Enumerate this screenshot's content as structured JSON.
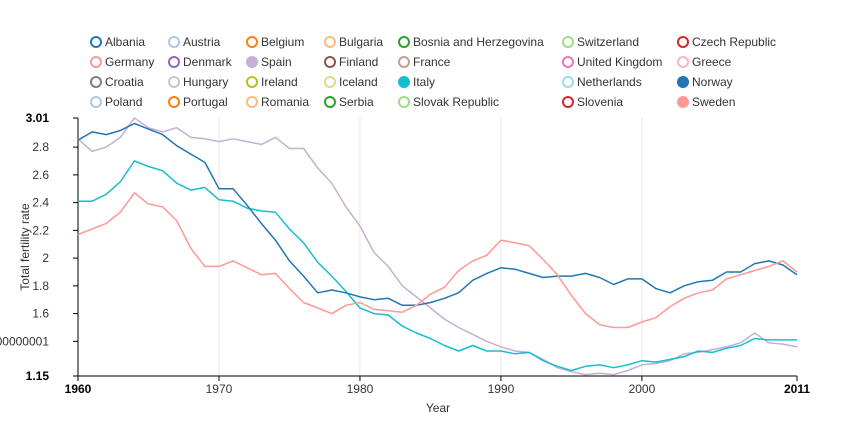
{
  "chart_data": {
    "type": "line",
    "title": "",
    "xlabel": "Year",
    "ylabel": "Total fertility rate",
    "xlim": [
      1960,
      2011
    ],
    "ylim": [
      1.15,
      3.01
    ],
    "x_ticks": [
      {
        "value": 1960,
        "label": "1960",
        "bold": true
      },
      {
        "value": 1970,
        "label": "1970",
        "bold": false
      },
      {
        "value": 1980,
        "label": "1980",
        "bold": false
      },
      {
        "value": 1990,
        "label": "1990",
        "bold": false
      },
      {
        "value": 2000,
        "label": "2000",
        "bold": false
      },
      {
        "value": 2011,
        "label": "2011",
        "bold": true
      }
    ],
    "y_ticks": [
      {
        "value": 3.01,
        "label": "3.01",
        "bold": true
      },
      {
        "value": 2.8,
        "label": "2.8",
        "bold": false
      },
      {
        "value": 2.6,
        "label": "2.6",
        "bold": false
      },
      {
        "value": 2.4,
        "label": "2.4",
        "bold": false
      },
      {
        "value": 2.2,
        "label": "2.2",
        "bold": false
      },
      {
        "value": 2.0,
        "label": "2",
        "bold": false
      },
      {
        "value": 1.8,
        "label": "1.8",
        "bold": false
      },
      {
        "value": 1.6,
        "label": "1.6",
        "bold": false
      },
      {
        "value": 1.4,
        "label": "00000001",
        "bold": false
      },
      {
        "value": 1.15,
        "label": "1.15",
        "bold": true
      }
    ],
    "x_grid_years": [
      1970,
      1980,
      1990,
      2000
    ],
    "legend": [
      {
        "name": "Albania",
        "color": "#1f77b4",
        "filled": false
      },
      {
        "name": "Austria",
        "color": "#aec7e8",
        "filled": false
      },
      {
        "name": "Belgium",
        "color": "#ff7f0e",
        "filled": false
      },
      {
        "name": "Bulgaria",
        "color": "#ffbb78",
        "filled": false
      },
      {
        "name": "Bosnia and Herzegovina",
        "color": "#2ca02c",
        "filled": false
      },
      {
        "name": "Switzerland",
        "color": "#98df8a",
        "filled": false
      },
      {
        "name": "Czech Republic",
        "color": "#d62728",
        "filled": false
      },
      {
        "name": "Germany",
        "color": "#ff9896",
        "filled": false
      },
      {
        "name": "Denmark",
        "color": "#9467bd",
        "filled": false
      },
      {
        "name": "Spain",
        "color": "#c5b0d5",
        "filled": true
      },
      {
        "name": "Finland",
        "color": "#8c564b",
        "filled": false
      },
      {
        "name": "France",
        "color": "#c49c94",
        "filled": false
      },
      {
        "name": "United Kingdom",
        "color": "#e377c2",
        "filled": false
      },
      {
        "name": "Greece",
        "color": "#f7b6d2",
        "filled": false
      },
      {
        "name": "Croatia",
        "color": "#7f7f7f",
        "filled": false
      },
      {
        "name": "Hungary",
        "color": "#c7c7c7",
        "filled": false
      },
      {
        "name": "Ireland",
        "color": "#bcbd22",
        "filled": false
      },
      {
        "name": "Iceland",
        "color": "#dbdb8d",
        "filled": false
      },
      {
        "name": "Italy",
        "color": "#17becf",
        "filled": true
      },
      {
        "name": "Netherlands",
        "color": "#9edae5",
        "filled": false
      },
      {
        "name": "Norway",
        "color": "#1f77b4",
        "filled": true
      },
      {
        "name": "Poland",
        "color": "#aec7e8",
        "filled": false
      },
      {
        "name": "Portugal",
        "color": "#ff7f0e",
        "filled": false
      },
      {
        "name": "Romania",
        "color": "#ffbb78",
        "filled": false
      },
      {
        "name": "Serbia",
        "color": "#2ca02c",
        "filled": false
      },
      {
        "name": "Slovak Republic",
        "color": "#98df8a",
        "filled": false
      },
      {
        "name": "Slovenia",
        "color": "#d62728",
        "filled": false
      },
      {
        "name": "Sweden",
        "color": "#ff9896",
        "filled": true
      }
    ],
    "series": [
      {
        "name": "Spain",
        "color": "#c5b0d5",
        "years": [
          1960,
          1961,
          1962,
          1963,
          1964,
          1965,
          1966,
          1967,
          1968,
          1969,
          1970,
          1971,
          1972,
          1973,
          1974,
          1975,
          1976,
          1977,
          1978,
          1979,
          1980,
          1981,
          1982,
          1983,
          1984,
          1985,
          1986,
          1987,
          1988,
          1989,
          1990,
          1991,
          1992,
          1993,
          1994,
          1995,
          1996,
          1997,
          1998,
          1999,
          2000,
          2001,
          2002,
          2003,
          2004,
          2005,
          2006,
          2007,
          2008,
          2009,
          2010,
          2011
        ],
        "values": [
          2.86,
          2.77,
          2.8,
          2.87,
          3.01,
          2.94,
          2.91,
          2.94,
          2.87,
          2.86,
          2.84,
          2.86,
          2.84,
          2.82,
          2.87,
          2.79,
          2.79,
          2.65,
          2.54,
          2.37,
          2.23,
          2.04,
          1.94,
          1.8,
          1.72,
          1.64,
          1.56,
          1.5,
          1.45,
          1.4,
          1.36,
          1.33,
          1.32,
          1.27,
          1.21,
          1.18,
          1.16,
          1.17,
          1.16,
          1.19,
          1.23,
          1.24,
          1.26,
          1.31,
          1.32,
          1.34,
          1.36,
          1.39,
          1.46,
          1.39,
          1.38,
          1.36
        ]
      },
      {
        "name": "Italy",
        "color": "#17becf",
        "years": [
          1960,
          1961,
          1962,
          1963,
          1964,
          1965,
          1966,
          1967,
          1968,
          1969,
          1970,
          1971,
          1972,
          1973,
          1974,
          1975,
          1976,
          1977,
          1978,
          1979,
          1980,
          1981,
          1982,
          1983,
          1984,
          1985,
          1986,
          1987,
          1988,
          1989,
          1990,
          1991,
          1992,
          1993,
          1994,
          1995,
          1996,
          1997,
          1998,
          1999,
          2000,
          2001,
          2002,
          2003,
          2004,
          2005,
          2006,
          2007,
          2008,
          2009,
          2010,
          2011
        ],
        "values": [
          2.41,
          2.41,
          2.46,
          2.55,
          2.7,
          2.66,
          2.63,
          2.54,
          2.49,
          2.51,
          2.42,
          2.41,
          2.36,
          2.34,
          2.33,
          2.21,
          2.11,
          1.97,
          1.87,
          1.76,
          1.64,
          1.6,
          1.59,
          1.51,
          1.46,
          1.42,
          1.37,
          1.33,
          1.37,
          1.33,
          1.33,
          1.31,
          1.32,
          1.26,
          1.22,
          1.19,
          1.22,
          1.23,
          1.21,
          1.23,
          1.26,
          1.25,
          1.27,
          1.29,
          1.33,
          1.32,
          1.35,
          1.37,
          1.42,
          1.41,
          1.41,
          1.41
        ]
      },
      {
        "name": "Norway",
        "color": "#1f77b4",
        "years": [
          1960,
          1961,
          1962,
          1963,
          1964,
          1965,
          1966,
          1967,
          1968,
          1969,
          1970,
          1971,
          1972,
          1973,
          1974,
          1975,
          1976,
          1977,
          1978,
          1979,
          1980,
          1981,
          1982,
          1983,
          1984,
          1985,
          1986,
          1987,
          1988,
          1989,
          1990,
          1991,
          1992,
          1993,
          1994,
          1995,
          1996,
          1997,
          1998,
          1999,
          2000,
          2001,
          2002,
          2003,
          2004,
          2005,
          2006,
          2007,
          2008,
          2009,
          2010,
          2011
        ],
        "values": [
          2.85,
          2.91,
          2.89,
          2.92,
          2.97,
          2.93,
          2.89,
          2.81,
          2.75,
          2.69,
          2.5,
          2.5,
          2.38,
          2.25,
          2.13,
          1.98,
          1.87,
          1.75,
          1.77,
          1.75,
          1.72,
          1.7,
          1.71,
          1.66,
          1.66,
          1.68,
          1.71,
          1.75,
          1.84,
          1.89,
          1.93,
          1.92,
          1.89,
          1.86,
          1.87,
          1.87,
          1.89,
          1.86,
          1.81,
          1.85,
          1.85,
          1.78,
          1.75,
          1.8,
          1.83,
          1.84,
          1.9,
          1.9,
          1.96,
          1.98,
          1.95,
          1.88
        ]
      },
      {
        "name": "Sweden",
        "color": "#ff9896",
        "years": [
          1960,
          1961,
          1962,
          1963,
          1964,
          1965,
          1966,
          1967,
          1968,
          1969,
          1970,
          1971,
          1972,
          1973,
          1974,
          1975,
          1976,
          1977,
          1978,
          1979,
          1980,
          1981,
          1982,
          1983,
          1984,
          1985,
          1986,
          1987,
          1988,
          1989,
          1990,
          1991,
          1992,
          1993,
          1994,
          1995,
          1996,
          1997,
          1998,
          1999,
          2000,
          2001,
          2002,
          2003,
          2004,
          2005,
          2006,
          2007,
          2008,
          2009,
          2010,
          2011
        ],
        "values": [
          2.17,
          2.21,
          2.25,
          2.33,
          2.47,
          2.39,
          2.37,
          2.27,
          2.07,
          1.94,
          1.94,
          1.98,
          1.93,
          1.88,
          1.89,
          1.78,
          1.68,
          1.64,
          1.6,
          1.66,
          1.68,
          1.63,
          1.62,
          1.61,
          1.66,
          1.74,
          1.79,
          1.91,
          1.98,
          2.02,
          2.13,
          2.11,
          2.09,
          1.99,
          1.88,
          1.73,
          1.6,
          1.52,
          1.5,
          1.5,
          1.54,
          1.57,
          1.65,
          1.71,
          1.75,
          1.77,
          1.85,
          1.88,
          1.91,
          1.94,
          1.98,
          1.9
        ]
      }
    ]
  }
}
